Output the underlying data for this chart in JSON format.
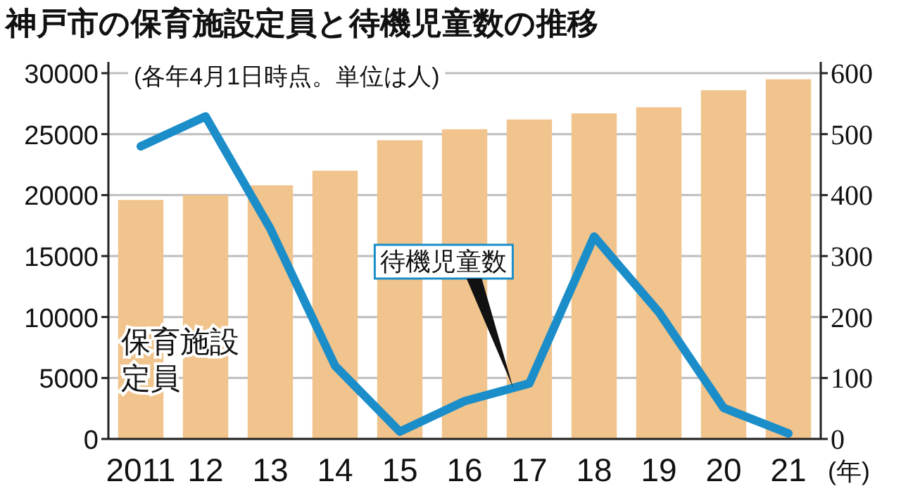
{
  "chart_data": {
    "type": "bar",
    "title": "神戸市の保育施設定員と待機児童数の推移",
    "subtitle": "(各年4月1日時点。単位は人)",
    "xlabel": "(年)",
    "categories": [
      "2011",
      "12",
      "13",
      "14",
      "15",
      "16",
      "17",
      "18",
      "19",
      "20",
      "21"
    ],
    "series": [
      {
        "name": "保育施設定員",
        "color": "#f0c48c",
        "values": [
          19600,
          20000,
          20800,
          22000,
          24500,
          25400,
          26200,
          26700,
          27200,
          28600,
          29500
        ]
      },
      {
        "name": "待機児童数",
        "type": "line",
        "axis": "y2",
        "color": "#1b8dc9",
        "values": [
          480,
          529,
          345,
          120,
          12,
          62,
          91,
          332,
          208,
          51,
          9
        ]
      }
    ],
    "ylim": [
      0,
      30000
    ],
    "yticks": [
      0,
      5000,
      10000,
      15000,
      20000,
      25000,
      30000
    ],
    "y2lim": [
      0,
      600
    ],
    "y2ticks": [
      0,
      100,
      200,
      300,
      400,
      500,
      600
    ],
    "grid": "y"
  }
}
